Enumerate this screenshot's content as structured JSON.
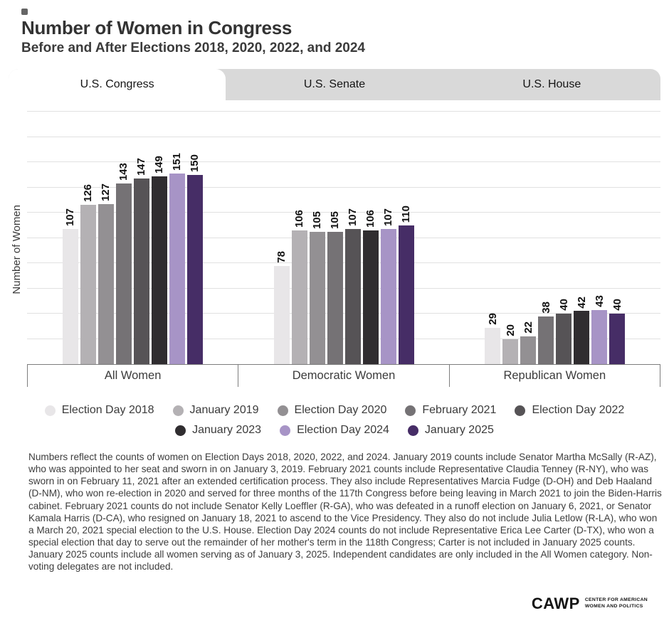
{
  "header": {
    "title": "Number of Women in Congress",
    "subtitle": "Before and After Elections 2018, 2020, 2022, and 2024"
  },
  "tabs": [
    {
      "label": "U.S. Congress",
      "active": true
    },
    {
      "label": "U.S. Senate",
      "active": false
    },
    {
      "label": "U.S. House",
      "active": false
    }
  ],
  "chart_data": {
    "type": "bar",
    "title": "Number of Women in Congress",
    "subtitle": "Before and After Elections 2018, 2020, 2022, and 2024",
    "ylabel": "Number of Women",
    "ylim": [
      0,
      200
    ],
    "gridline_step": 20,
    "grid": true,
    "legend_position": "bottom",
    "categories": [
      "All Women",
      "Democratic Women",
      "Republican Women"
    ],
    "series": [
      {
        "name": "Election Day 2018",
        "color": "#e8e6e8",
        "values": [
          107,
          78,
          29
        ]
      },
      {
        "name": "January 2019",
        "color": "#b4b1b4",
        "values": [
          126,
          106,
          20
        ]
      },
      {
        "name": "Election Day 2020",
        "color": "#939093",
        "values": [
          127,
          105,
          22
        ]
      },
      {
        "name": "February 2021",
        "color": "#757275",
        "values": [
          143,
          105,
          38
        ]
      },
      {
        "name": "Election Day 2022",
        "color": "#565356",
        "values": [
          147,
          107,
          40
        ]
      },
      {
        "name": "January 2023",
        "color": "#302d30",
        "values": [
          149,
          106,
          42
        ]
      },
      {
        "name": "Election Day 2024",
        "color": "#a794c6",
        "values": [
          151,
          107,
          43
        ]
      },
      {
        "name": "January 2025",
        "color": "#462d66",
        "values": [
          150,
          110,
          40
        ]
      }
    ]
  },
  "footnote": "Numbers reflect the counts of women on Election Days 2018, 2020, 2022, and 2024. January 2019 counts include Senator Martha McSally (R-AZ), who was appointed to her seat and sworn in on January 3, 2019. February 2021 counts include Representative Claudia Tenney (R-NY), who was sworn in on February 11, 2021 after an extended certification process. They also include Representatives Marcia Fudge (D-OH) and Deb Haaland (D-NM), who won re-election in 2020 and served for three months of the 117th Congress before being leaving in March 2021 to join the Biden-Harris cabinet. February 2021 counts do not include Senator Kelly Loeffler (R-GA), who was defeated in a runoff election on January 6, 2021, or Senator Kamala Harris (D-CA), who resigned on January 18, 2021 to ascend to the Vice Presidency. They also do not include Julia Letlow (R-LA), who won a March 20, 2021 special election to the U.S. House. Election Day 2024 counts do not include Representative Erica Lee Carter (D-TX), who won a special election that day to serve out the remainder of her mother's term in the 118th Congress; Carter is not included in January 2025 counts. January 2025 counts include all women serving as of January 3, 2025. Independent candidates are only included in the All Women category. Non-voting delegates are not included.",
  "logo": {
    "name": "CAWP",
    "tagline_line1": "CENTER FOR AMERICAN",
    "tagline_line2": "WOMEN AND POLITICS"
  }
}
